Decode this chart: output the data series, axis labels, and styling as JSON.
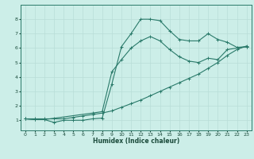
{
  "xlabel": "Humidex (Indice chaleur)",
  "bg_color": "#cceee8",
  "grid_color": "#b8ddd8",
  "line_color": "#2a7a6a",
  "xlim": [
    -0.5,
    23.5
  ],
  "ylim": [
    0.3,
    9.0
  ],
  "xticks": [
    0,
    1,
    2,
    3,
    4,
    5,
    6,
    7,
    8,
    9,
    10,
    11,
    12,
    13,
    14,
    15,
    16,
    17,
    18,
    19,
    20,
    21,
    22,
    23
  ],
  "yticks": [
    1,
    2,
    3,
    4,
    5,
    6,
    7,
    8
  ],
  "series": [
    {
      "x": [
        0,
        1,
        2,
        3,
        4,
        5,
        6,
        7,
        8,
        9,
        10,
        11,
        12,
        13,
        14,
        15,
        16,
        17,
        18,
        19,
        20,
        21,
        22,
        23
      ],
      "y": [
        1.1,
        1.05,
        1.05,
        0.85,
        1.0,
        1.0,
        1.0,
        1.1,
        1.15,
        3.5,
        6.1,
        7.0,
        8.0,
        8.0,
        7.9,
        7.2,
        6.6,
        6.5,
        6.5,
        7.0,
        6.6,
        6.4,
        6.05,
        6.1
      ]
    },
    {
      "x": [
        0,
        1,
        2,
        7,
        8,
        9,
        10,
        11,
        12,
        13,
        14,
        15,
        16,
        17,
        18,
        19,
        20,
        21,
        22,
        23
      ],
      "y": [
        1.1,
        1.05,
        1.05,
        1.5,
        1.6,
        4.35,
        5.2,
        6.0,
        6.5,
        6.8,
        6.5,
        5.9,
        5.4,
        5.1,
        5.0,
        5.3,
        5.2,
        5.9,
        6.0,
        6.1
      ]
    },
    {
      "x": [
        0,
        1,
        2,
        3,
        4,
        5,
        6,
        7,
        8,
        9,
        10,
        11,
        12,
        13,
        14,
        15,
        16,
        17,
        18,
        19,
        20,
        21,
        22,
        23
      ],
      "y": [
        1.1,
        1.1,
        1.1,
        1.1,
        1.1,
        1.2,
        1.3,
        1.4,
        1.5,
        1.65,
        1.9,
        2.15,
        2.4,
        2.7,
        3.0,
        3.3,
        3.6,
        3.9,
        4.2,
        4.6,
        5.0,
        5.5,
        5.9,
        6.15
      ]
    }
  ]
}
